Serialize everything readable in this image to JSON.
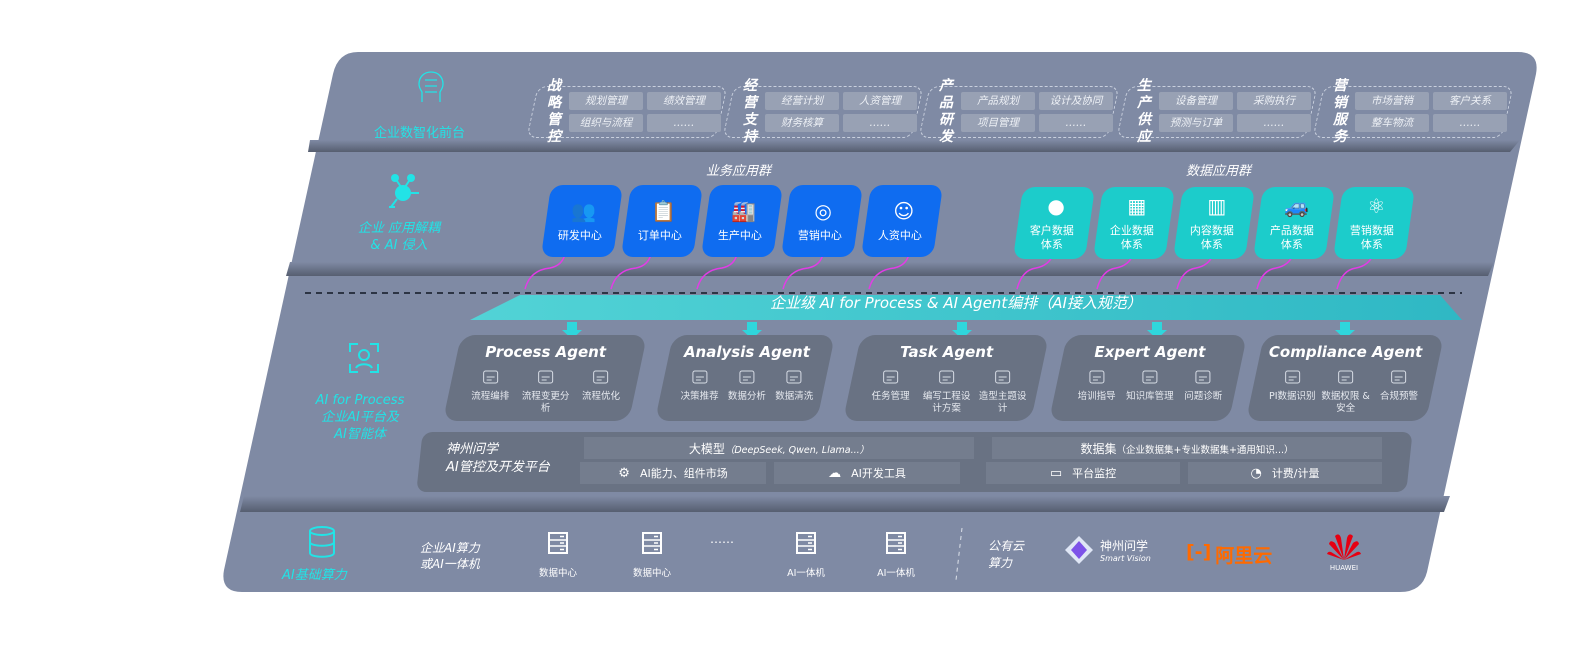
{
  "layers": {
    "front": {
      "label": "企业数智化前台",
      "icon": "brain-icon"
    },
    "apps": {
      "label_line1": "企业 应用解耦",
      "label_line2": "& AI 侵入",
      "icon": "molecule-icon"
    },
    "ai": {
      "label_line1": "AI for Process",
      "label_line2": "企业AI平台及",
      "label_line3": "AI智能体",
      "icon": "face-scan-icon"
    },
    "infra": {
      "label": "AI基础算力",
      "icon": "database-icon"
    }
  },
  "front_groups": [
    {
      "title1": "战略",
      "title2": "管控",
      "items": [
        "规划管理",
        "绩效管理",
        "组织与流程",
        "……"
      ]
    },
    {
      "title1": "经营",
      "title2": "支持",
      "items": [
        "经营计划",
        "人资管理",
        "财务核算",
        "……"
      ]
    },
    {
      "title1": "产品",
      "title2": "研发",
      "items": [
        "产品规划",
        "设计及协同",
        "项目管理",
        "……"
      ]
    },
    {
      "title1": "生产",
      "title2": "供应",
      "items": [
        "设备管理",
        "采购执行",
        "预测与订单",
        "……"
      ]
    },
    {
      "title1": "营销",
      "title2": "服务",
      "items": [
        "市场营销",
        "客户关系",
        "整车物流",
        "……"
      ]
    }
  ],
  "business_apps": {
    "title": "业务应用群",
    "items": [
      {
        "label": "研发中心",
        "icon": "users-icon"
      },
      {
        "label": "订单中心",
        "icon": "clipboard-icon"
      },
      {
        "label": "生产中心",
        "icon": "factory-icon"
      },
      {
        "label": "营销中心",
        "icon": "target-icon"
      },
      {
        "label": "人资中心",
        "icon": "person-icon"
      }
    ]
  },
  "data_apps": {
    "title": "数据应用群",
    "items": [
      {
        "label1": "客户数据",
        "label2": "体系",
        "icon": "user-icon"
      },
      {
        "label1": "企业数据",
        "label2": "体系",
        "icon": "building-icon"
      },
      {
        "label1": "内容数据",
        "label2": "体系",
        "icon": "books-icon"
      },
      {
        "label1": "产品数据",
        "label2": "体系",
        "icon": "car-icon"
      },
      {
        "label1": "营销数据",
        "label2": "体系",
        "icon": "atom-icon"
      }
    ]
  },
  "orchestration_banner": "企业级 AI for Process & AI Agent编排（AI接入规范）",
  "agents": [
    {
      "name": "Process Agent",
      "features": [
        "流程编排",
        "流程变更分析",
        "流程优化"
      ]
    },
    {
      "name": "Analysis Agent",
      "features": [
        "决策推荐",
        "数据分析",
        "数据清洗"
      ]
    },
    {
      "name": "Task Agent",
      "features": [
        "任务管理",
        "编写工程设计方案",
        "造型主题设计"
      ]
    },
    {
      "name": "Expert Agent",
      "features": [
        "培训指导",
        "知识库管理",
        "问题诊断"
      ]
    },
    {
      "name": "Compliance Agent",
      "features": [
        "PI数据识别",
        "数据权限 & 安全",
        "合规预警"
      ]
    }
  ],
  "platform": {
    "title1": "神州问学",
    "title2": "AI管控及开发平台",
    "llm": "大模型",
    "llm_note": "（DeepSeek, Qwen, Llama...）",
    "dataset": "数据集",
    "dataset_note": "（企业数据集+专业数据集+通用知识...）",
    "tools": [
      "AI能力、组件市场",
      "AI开发工具",
      "平台监控",
      "计费/计量"
    ]
  },
  "infra": {
    "enterprise_label1": "企业AI算力",
    "enterprise_label2": "或AI一体机",
    "servers": [
      "数据中心",
      "数据中心",
      "AI一体机",
      "AI一体机"
    ],
    "ellipsis": "……",
    "public_label1": "公有云",
    "public_label2": "算力",
    "vendors": {
      "smartvision_cn": "神州问学",
      "smartvision_en": "Smart Vision",
      "aliyun": "阿里云",
      "huawei": "HUAWEI"
    }
  },
  "colors": {
    "panel": "#7f8aa4",
    "accent_cyan": "#22e3e6",
    "business_blue": "#0f6cf0",
    "data_teal": "#1ccccb",
    "arrow_magenta": "#e23ce6",
    "aliyun_orange": "#ff6a00",
    "huawei_red": "#e60012"
  }
}
